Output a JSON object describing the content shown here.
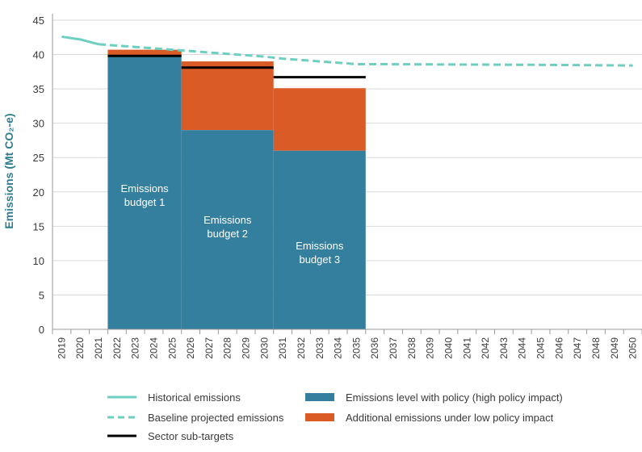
{
  "chart_data": {
    "type": "area",
    "ylabel": "Emissions (Mt CO₂-e)",
    "ylim": [
      0,
      45
    ],
    "yticks": [
      0,
      5,
      10,
      15,
      20,
      25,
      30,
      35,
      40,
      45
    ],
    "grid": "horizontal",
    "categories": [
      "2019",
      "2020",
      "2021",
      "2022",
      "2023",
      "2024",
      "2025",
      "2026",
      "2027",
      "2028",
      "2029",
      "2030",
      "2031",
      "2032",
      "2033",
      "2034",
      "2035",
      "2036",
      "2037",
      "2038",
      "2039",
      "2040",
      "2041",
      "2042",
      "2043",
      "2044",
      "2045",
      "2046",
      "2047",
      "2048",
      "2049",
      "2050"
    ],
    "historical": {
      "name": "Historical emissions",
      "color": "#6ccfc0",
      "x": [
        2019,
        2020,
        2021
      ],
      "y": [
        42.6,
        42.2,
        41.5
      ]
    },
    "baseline": {
      "name": "Baseline projected emissions",
      "color": "#6ccfc0",
      "x": [
        2021,
        2022,
        2023,
        2024,
        2025,
        2026,
        2027,
        2028,
        2029,
        2030,
        2031,
        2032,
        2033,
        2034,
        2035,
        2036,
        2040,
        2045,
        2050
      ],
      "y": [
        41.5,
        41.3,
        41.1,
        40.9,
        40.7,
        40.5,
        40.3,
        40.1,
        39.9,
        39.7,
        39.4,
        39.2,
        39.0,
        38.8,
        38.6,
        38.6,
        38.55,
        38.5,
        38.4
      ]
    },
    "budgets": [
      {
        "label_line1": "Emissions",
        "label_line2": "budget 1",
        "start": "2022",
        "end": "2025",
        "policy_level": 39.8,
        "low_impact_top": 40.7,
        "sub_target": 39.8
      },
      {
        "label_line1": "Emissions",
        "label_line2": "budget 2",
        "start": "2026",
        "end": "2030",
        "policy_level": 29.0,
        "low_impact_top": 39.0,
        "sub_target": 38.1
      },
      {
        "label_line1": "Emissions",
        "label_line2": "budget 3",
        "start": "2031",
        "end": "2035",
        "policy_level": 26.0,
        "low_impact_top": 35.1,
        "sub_target": 36.7
      }
    ],
    "colors": {
      "policy": "#357f9e",
      "low_impact": "#db5b27",
      "sub_target": "#000000",
      "line": "#6ccfc0",
      "grid": "#d9d9d9",
      "axis": "#9a9a9a"
    },
    "legend": [
      {
        "label": "Historical emissions",
        "kind": "solid-line",
        "color": "#6ccfc0"
      },
      {
        "label": "Emissions level with policy (high policy impact)",
        "kind": "box",
        "color": "#357f9e"
      },
      {
        "label": "Baseline projected emissions",
        "kind": "dashed-line",
        "color": "#6ccfc0"
      },
      {
        "label": "Additional emissions under low policy impact",
        "kind": "box",
        "color": "#db5b27"
      },
      {
        "label": "Sector sub-targets",
        "kind": "solid-line",
        "color": "#000000"
      }
    ]
  }
}
